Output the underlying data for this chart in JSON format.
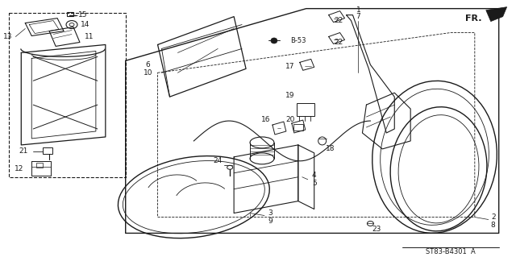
{
  "title": "ST83-B4301 A",
  "fr_label": "FR.",
  "background_color": "#ffffff",
  "line_color": "#1a1a1a",
  "fig_width": 6.4,
  "fig_height": 3.19,
  "dpi": 100
}
